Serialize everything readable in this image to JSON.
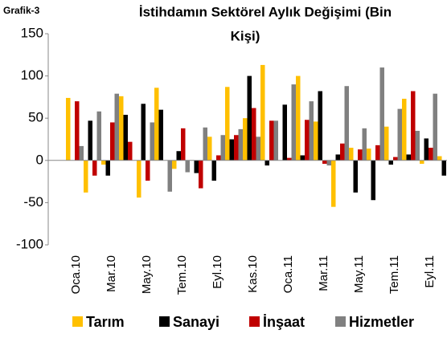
{
  "chart_data": {
    "type": "bar",
    "label": "Grafik-3",
    "title": [
      "İstihdamın Sektörel Aylık Değişimi (Bin",
      "Kişi)"
    ],
    "categories": [
      "Oca.10",
      null,
      "Mar.10",
      null,
      "May.10",
      null,
      "Tem.10",
      null,
      "Eyl.10",
      null,
      "Kas.10",
      null,
      "Oca.11",
      null,
      "Mar.11",
      null,
      "May.11",
      null,
      "Tem.11",
      null,
      "Eyl.11",
      null
    ],
    "series": [
      {
        "name": "Tarım",
        "color": "#ffc000",
        "values": [
          74,
          -38,
          -5,
          76,
          -44,
          86,
          -10,
          0,
          28,
          87,
          50,
          113,
          0,
          100,
          46,
          -55,
          15,
          14,
          40,
          73,
          -4,
          5
        ]
      },
      {
        "name": "Sanayi",
        "color": "#000000",
        "values": [
          0,
          47,
          -18,
          54,
          67,
          60,
          11,
          -15,
          -24,
          25,
          100,
          -6,
          66,
          6,
          82,
          7,
          -38,
          -47,
          -5,
          7,
          26,
          -18
        ]
      },
      {
        "name": "İnşaat",
        "color": "#c00000",
        "values": [
          70,
          -18,
          45,
          22,
          -24,
          0,
          38,
          -33,
          6,
          30,
          62,
          47,
          3,
          48,
          -4,
          20,
          13,
          18,
          4,
          82,
          15,
          null
        ]
      },
      {
        "name": "Hizmetler",
        "color": "#808080",
        "values": [
          17,
          58,
          79,
          0,
          45,
          -37,
          -14,
          39,
          30,
          37,
          28,
          47,
          90,
          70,
          -6,
          88,
          38,
          110,
          61,
          35,
          79,
          null
        ]
      }
    ],
    "ylim": [
      -100,
      150
    ],
    "yticks": [
      -100,
      -50,
      0,
      50,
      100,
      150
    ],
    "grid": false
  }
}
